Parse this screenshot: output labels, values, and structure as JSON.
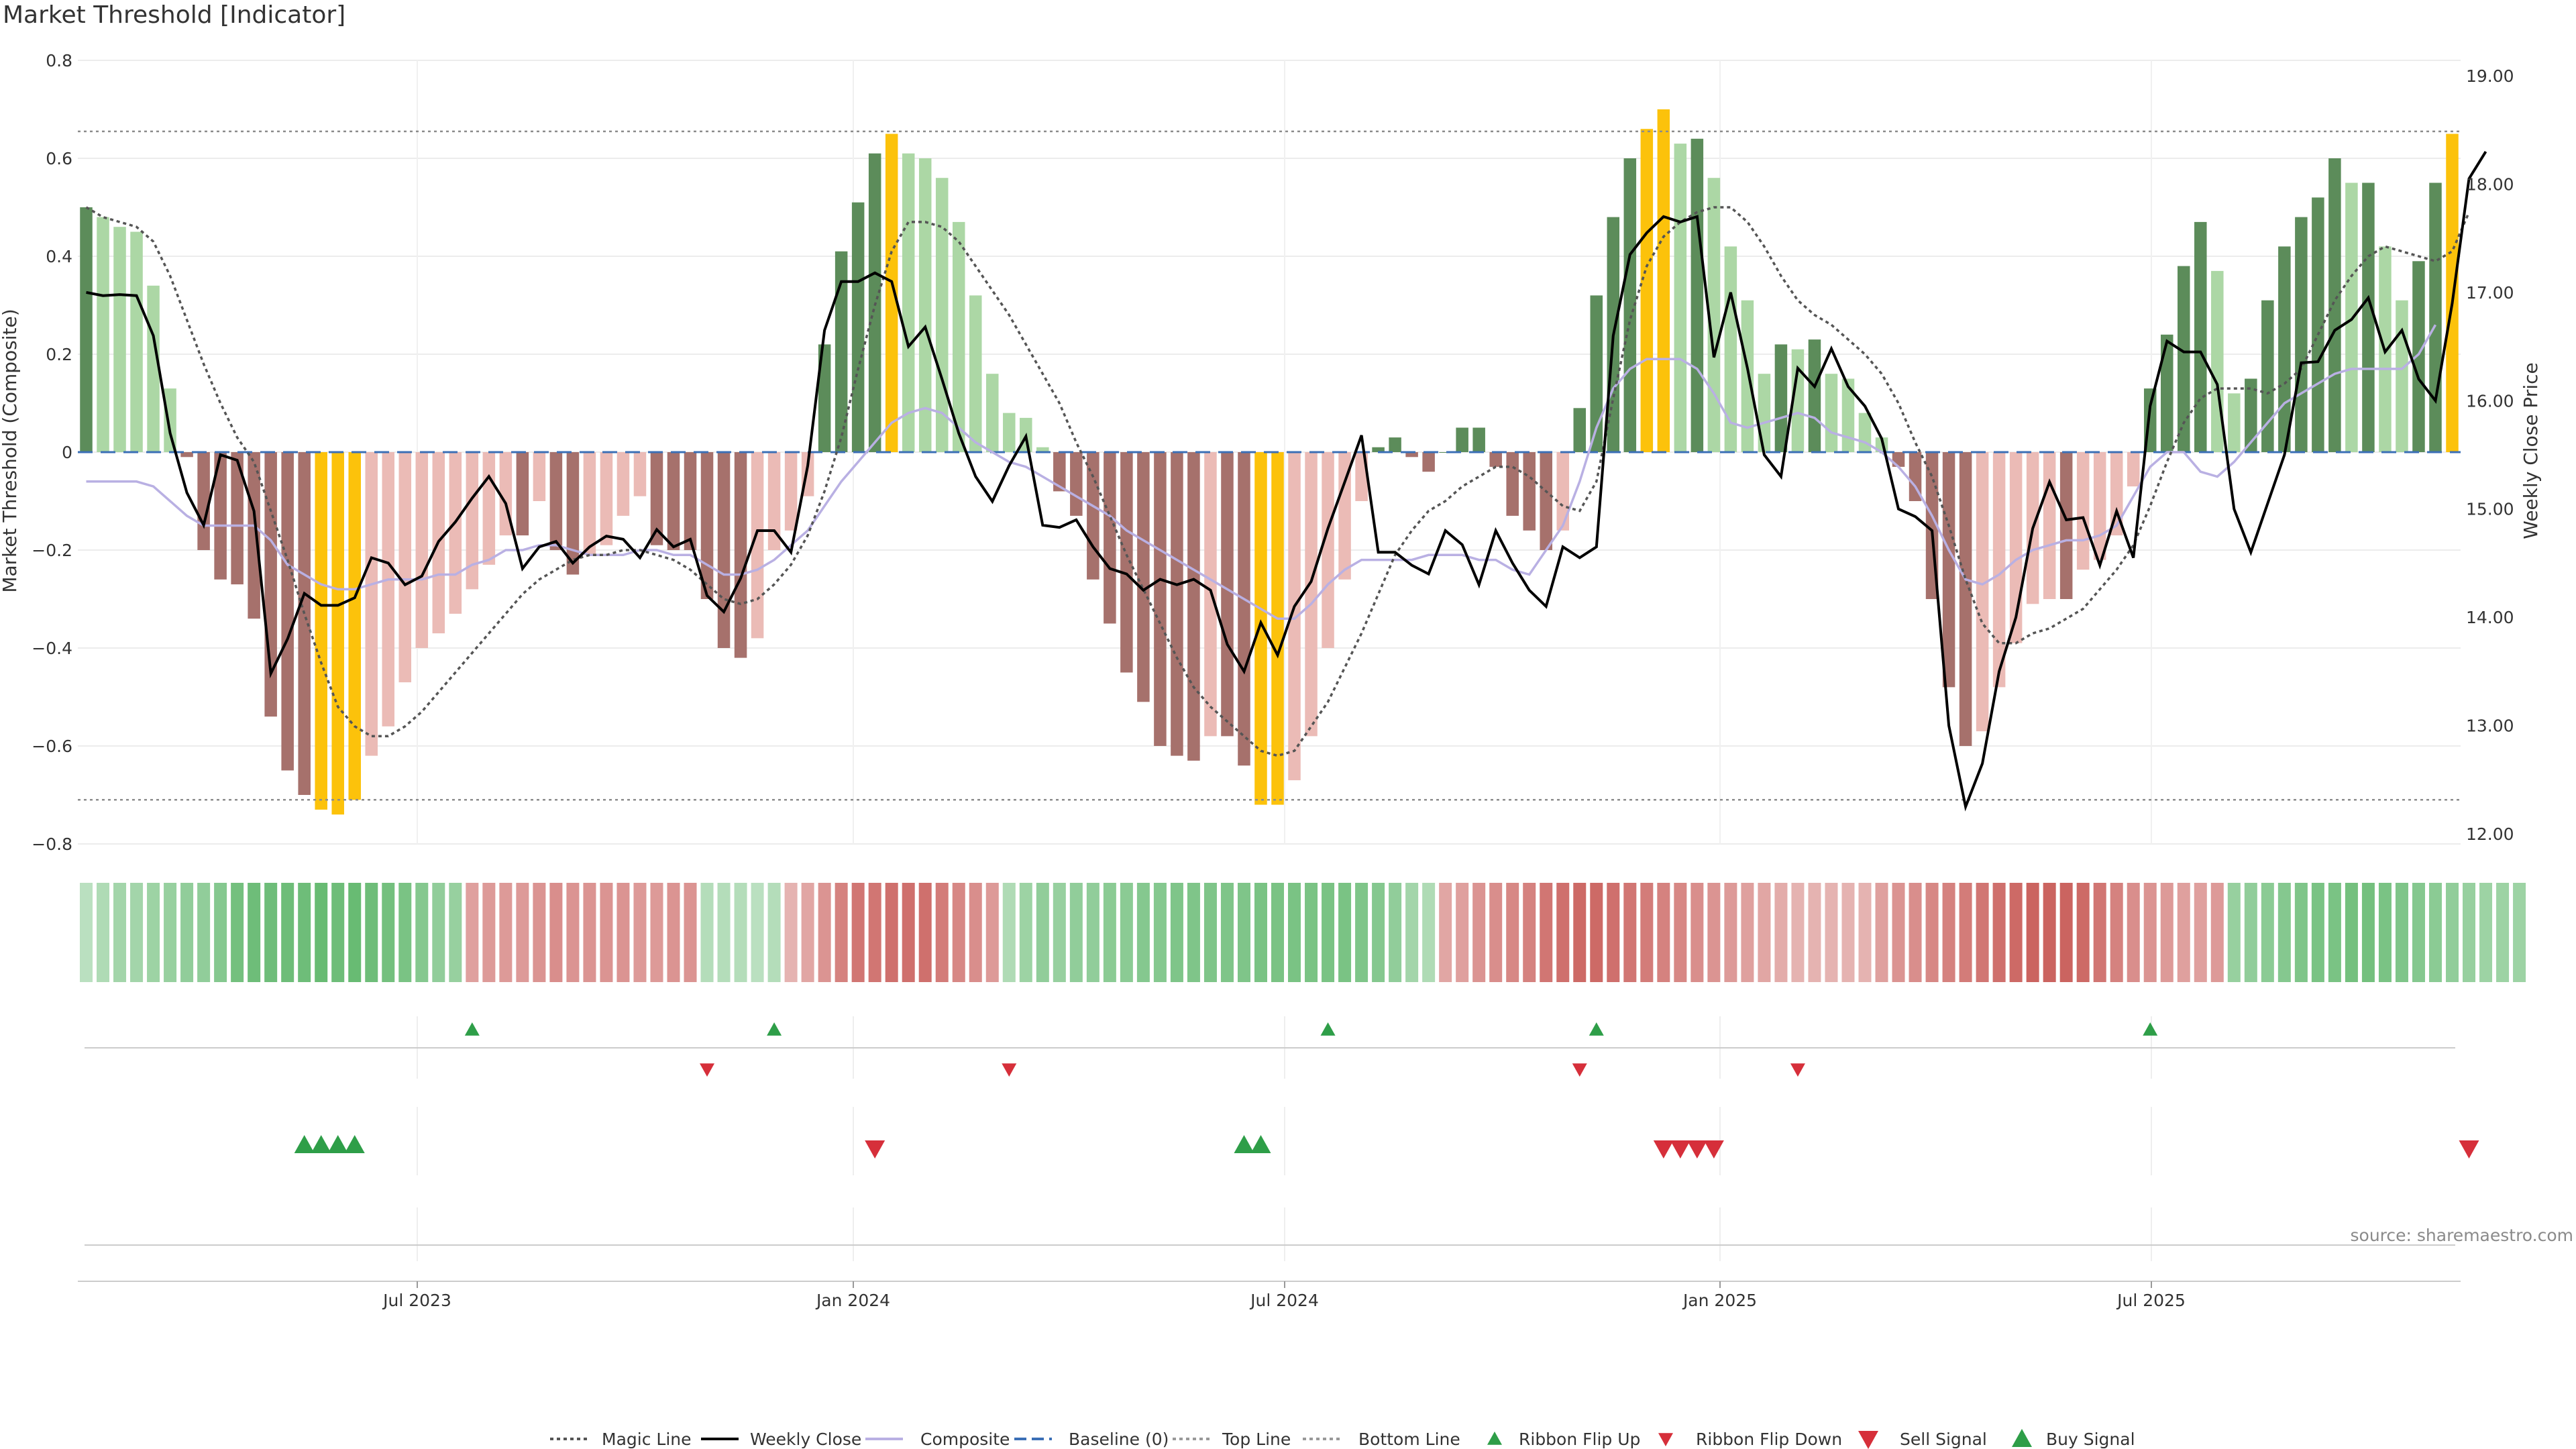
{
  "chart_data": {
    "title": "Market Threshold [Indicator]",
    "type": "bar",
    "ylabel_left": "Market Threshold (Composite)",
    "ylabel_right": "Weekly Close Price",
    "ylim_left": [
      -0.8,
      0.8
    ],
    "ylim_right": [
      12.0,
      19.0
    ],
    "yticks_left": [
      "0.8",
      "0.6",
      "0.4",
      "0.2",
      "0",
      "−0.2",
      "−0.4",
      "−0.6",
      "−0.8"
    ],
    "yticks_right": [
      "19.00",
      "18.00",
      "17.00",
      "16.00",
      "15.00",
      "14.00",
      "13.00",
      "12.00"
    ],
    "xticks": [
      "Jul 2023",
      "Jan 2024",
      "Jul 2024",
      "Jan 2025",
      "Jul 2025"
    ],
    "grid": true,
    "source": "source: sharemaestro.com",
    "top_line": 0.655,
    "bottom_line": -0.71,
    "legend": [
      {
        "label": "Magic Line",
        "style": "dotted-line",
        "color": "#555555"
      },
      {
        "label": "Weekly Close",
        "style": "solid-line",
        "color": "#000000"
      },
      {
        "label": "Composite",
        "style": "solid-line",
        "color": "#b9b0e3"
      },
      {
        "label": "Baseline (0)",
        "style": "dashed-line",
        "color": "#3b6fb6"
      },
      {
        "label": "Top Line",
        "style": "dotted-line",
        "color": "#999999"
      },
      {
        "label": "Bottom Line",
        "style": "dotted-line",
        "color": "#999999"
      },
      {
        "label": "Ribbon Flip Up",
        "style": "triangle-up-small",
        "color": "#2e9e48"
      },
      {
        "label": "Ribbon Flip Down",
        "style": "triangle-down-small",
        "color": "#d62f3a"
      },
      {
        "label": "Sell Signal",
        "style": "triangle-down",
        "color": "#d62f3a"
      },
      {
        "label": "Buy Signal",
        "style": "triangle-up",
        "color": "#2e9e48"
      }
    ],
    "colors": {
      "pos_light": "#acd7a5",
      "pos_dark": "#5c8c5a",
      "neg_light": "#ebbbb6",
      "neg_dark": "#a6716c",
      "extreme": "#fcc20b",
      "ribbon_red": "#c95e5a",
      "ribbon_green": "#62b86e"
    },
    "composite": [
      0.5,
      0.48,
      0.46,
      0.45,
      0.34,
      0.13,
      -0.01,
      -0.2,
      -0.26,
      -0.27,
      -0.34,
      -0.54,
      -0.65,
      -0.7,
      -0.73,
      -0.74,
      -0.71,
      -0.62,
      -0.56,
      -0.47,
      -0.4,
      -0.37,
      -0.33,
      -0.28,
      -0.23,
      -0.17,
      -0.17,
      -0.1,
      -0.2,
      -0.25,
      -0.21,
      -0.19,
      -0.13,
      -0.09,
      -0.19,
      -0.2,
      -0.2,
      -0.3,
      -0.4,
      -0.42,
      -0.38,
      -0.2,
      -0.16,
      -0.09,
      0.22,
      0.41,
      0.51,
      0.61,
      0.65,
      0.61,
      0.6,
      0.56,
      0.47,
      0.32,
      0.16,
      0.08,
      0.07,
      0.01,
      -0.08,
      -0.13,
      -0.26,
      -0.35,
      -0.45,
      -0.51,
      -0.6,
      -0.62,
      -0.63,
      -0.58,
      -0.58,
      -0.64,
      -0.72,
      -0.72,
      -0.67,
      -0.58,
      -0.4,
      -0.26,
      -0.1,
      0.01,
      0.03,
      -0.01,
      -0.04,
      0.0,
      0.05,
      0.05,
      -0.03,
      -0.13,
      -0.16,
      -0.2,
      -0.16,
      0.09,
      0.32,
      0.48,
      0.6,
      0.66,
      0.7,
      0.63,
      0.64,
      0.56,
      0.42,
      0.31,
      0.16,
      0.22,
      0.21,
      0.23,
      0.16,
      0.15,
      0.08,
      0.03,
      -0.03,
      -0.1,
      -0.3,
      -0.48,
      -0.6,
      -0.57,
      -0.48,
      -0.39,
      -0.31,
      -0.3,
      -0.3,
      -0.24,
      -0.22,
      -0.17,
      -0.07,
      0.13,
      0.24,
      0.38,
      0.47,
      0.37,
      0.12,
      0.15,
      0.31,
      0.42,
      0.48,
      0.52,
      0.6,
      0.55,
      0.55,
      0.42,
      0.31,
      0.39,
      0.55,
      0.65
    ],
    "composite_avg_line": [
      -0.06,
      -0.06,
      -0.06,
      -0.06,
      -0.07,
      -0.1,
      -0.13,
      -0.15,
      -0.15,
      -0.15,
      -0.15,
      -0.18,
      -0.23,
      -0.25,
      -0.27,
      -0.28,
      -0.28,
      -0.27,
      -0.26,
      -0.26,
      -0.26,
      -0.25,
      -0.25,
      -0.23,
      -0.22,
      -0.2,
      -0.2,
      -0.19,
      -0.19,
      -0.2,
      -0.21,
      -0.21,
      -0.21,
      -0.2,
      -0.2,
      -0.21,
      -0.21,
      -0.23,
      -0.25,
      -0.25,
      -0.24,
      -0.22,
      -0.19,
      -0.16,
      -0.11,
      -0.06,
      -0.02,
      0.02,
      0.06,
      0.08,
      0.09,
      0.08,
      0.05,
      0.02,
      0.0,
      -0.02,
      -0.03,
      -0.05,
      -0.07,
      -0.09,
      -0.11,
      -0.13,
      -0.16,
      -0.18,
      -0.2,
      -0.22,
      -0.24,
      -0.26,
      -0.28,
      -0.3,
      -0.32,
      -0.34,
      -0.34,
      -0.31,
      -0.27,
      -0.24,
      -0.22,
      -0.22,
      -0.22,
      -0.22,
      -0.21,
      -0.21,
      -0.21,
      -0.22,
      -0.22,
      -0.24,
      -0.25,
      -0.2,
      -0.15,
      -0.06,
      0.05,
      0.13,
      0.17,
      0.19,
      0.19,
      0.19,
      0.17,
      0.12,
      0.06,
      0.05,
      0.06,
      0.07,
      0.08,
      0.07,
      0.04,
      0.03,
      0.02,
      0.0,
      -0.03,
      -0.07,
      -0.13,
      -0.2,
      -0.26,
      -0.27,
      -0.25,
      -0.22,
      -0.2,
      -0.19,
      -0.18,
      -0.18,
      -0.17,
      -0.15,
      -0.09,
      -0.03,
      0.0,
      0.0,
      -0.04,
      -0.05,
      -0.02,
      0.02,
      0.06,
      0.1,
      0.12,
      0.14,
      0.16,
      0.17,
      0.17,
      0.17,
      0.17,
      0.2,
      0.26
    ],
    "magic_line": [
      0.5,
      0.48,
      0.47,
      0.46,
      0.43,
      0.36,
      0.27,
      0.18,
      0.1,
      0.03,
      -0.02,
      -0.12,
      -0.22,
      -0.33,
      -0.43,
      -0.52,
      -0.56,
      -0.58,
      -0.58,
      -0.56,
      -0.53,
      -0.49,
      -0.45,
      -0.41,
      -0.37,
      -0.33,
      -0.29,
      -0.26,
      -0.24,
      -0.22,
      -0.21,
      -0.21,
      -0.2,
      -0.2,
      -0.21,
      -0.22,
      -0.24,
      -0.27,
      -0.3,
      -0.31,
      -0.3,
      -0.27,
      -0.23,
      -0.17,
      -0.08,
      0.03,
      0.17,
      0.3,
      0.41,
      0.47,
      0.47,
      0.46,
      0.43,
      0.38,
      0.33,
      0.28,
      0.22,
      0.16,
      0.1,
      0.02,
      -0.05,
      -0.13,
      -0.21,
      -0.28,
      -0.35,
      -0.42,
      -0.48,
      -0.52,
      -0.55,
      -0.58,
      -0.61,
      -0.62,
      -0.61,
      -0.56,
      -0.51,
      -0.44,
      -0.37,
      -0.29,
      -0.21,
      -0.16,
      -0.12,
      -0.1,
      -0.07,
      -0.05,
      -0.03,
      -0.03,
      -0.05,
      -0.08,
      -0.11,
      -0.12,
      -0.06,
      0.11,
      0.27,
      0.38,
      0.44,
      0.47,
      0.49,
      0.5,
      0.5,
      0.47,
      0.42,
      0.36,
      0.31,
      0.28,
      0.26,
      0.23,
      0.2,
      0.16,
      0.1,
      0.02,
      -0.05,
      -0.15,
      -0.26,
      -0.35,
      -0.39,
      -0.39,
      -0.37,
      -0.36,
      -0.34,
      -0.32,
      -0.28,
      -0.24,
      -0.19,
      -0.11,
      -0.02,
      0.06,
      0.11,
      0.13,
      0.13,
      0.13,
      0.12,
      0.14,
      0.17,
      0.24,
      0.31,
      0.36,
      0.4,
      0.42,
      0.41,
      0.4,
      0.39,
      0.41,
      0.49
    ],
    "weekly_close": [
      17.0,
      16.97,
      16.98,
      16.97,
      16.6,
      15.7,
      15.15,
      14.85,
      15.5,
      15.45,
      14.98,
      13.48,
      13.8,
      14.22,
      14.11,
      14.11,
      14.18,
      14.55,
      14.5,
      14.3,
      14.38,
      14.7,
      14.88,
      15.1,
      15.3,
      15.05,
      14.45,
      14.65,
      14.7,
      14.5,
      14.65,
      14.75,
      14.72,
      14.55,
      14.81,
      14.65,
      14.72,
      14.2,
      14.05,
      14.36,
      14.8,
      14.8,
      14.6,
      15.4,
      16.65,
      17.1,
      17.1,
      17.18,
      17.1,
      16.5,
      16.68,
      16.2,
      15.7,
      15.3,
      15.07,
      15.4,
      15.67,
      14.85,
      14.83,
      14.9,
      14.65,
      14.45,
      14.4,
      14.25,
      14.35,
      14.3,
      14.35,
      14.25,
      13.75,
      13.5,
      13.95,
      13.65,
      14.1,
      14.33,
      14.82,
      15.25,
      15.68,
      14.6,
      14.6,
      14.48,
      14.4,
      14.8,
      14.67,
      14.3,
      14.8,
      14.5,
      14.25,
      14.1,
      14.65,
      14.55,
      14.65,
      16.6,
      17.35,
      17.55,
      17.7,
      17.65,
      17.7,
      16.4,
      17.0,
      16.3,
      15.5,
      15.3,
      16.3,
      16.13,
      16.48,
      16.13,
      15.95,
      15.65,
      15.0,
      14.93,
      14.8,
      13.0,
      12.25,
      12.65,
      13.5,
      14.0,
      14.82,
      15.25,
      14.9,
      14.92,
      14.48,
      14.98,
      14.55,
      15.95,
      16.55,
      16.45,
      16.45,
      16.15,
      15.0,
      14.6,
      15.05,
      15.5,
      16.35,
      16.36,
      16.65,
      16.75,
      16.95,
      16.45,
      16.65,
      16.2,
      16.0,
      16.9,
      18.05,
      18.3
    ]
  },
  "ribbon": {
    "shades": [
      0.25,
      0.35,
      0.45,
      0.45,
      0.5,
      0.55,
      0.6,
      0.6,
      0.7,
      0.85,
      0.9,
      0.9,
      0.9,
      0.9,
      0.95,
      0.9,
      0.95,
      0.9,
      0.85,
      0.8,
      0.7,
      0.6,
      0.55,
      -0.45,
      -0.5,
      -0.5,
      -0.5,
      -0.55,
      -0.6,
      -0.55,
      -0.55,
      -0.55,
      -0.55,
      -0.5,
      -0.5,
      -0.55,
      -0.55,
      0.3,
      0.3,
      0.3,
      0.25,
      0.3,
      -0.3,
      -0.4,
      -0.55,
      -0.7,
      -0.8,
      -0.8,
      -0.85,
      -0.85,
      -0.85,
      -0.75,
      -0.65,
      -0.6,
      -0.5,
      0.35,
      0.5,
      0.6,
      0.55,
      0.6,
      0.6,
      0.65,
      0.65,
      0.7,
      0.7,
      0.75,
      0.75,
      0.75,
      0.75,
      0.75,
      0.8,
      0.8,
      0.8,
      0.8,
      0.8,
      0.8,
      0.75,
      0.7,
      0.6,
      0.45,
      0.35,
      -0.4,
      -0.45,
      -0.55,
      -0.6,
      -0.65,
      -0.7,
      -0.8,
      -0.85,
      -0.9,
      -0.9,
      -0.85,
      -0.8,
      -0.75,
      -0.7,
      -0.65,
      -0.6,
      -0.55,
      -0.5,
      -0.45,
      -0.4,
      -0.35,
      -0.3,
      -0.3,
      -0.3,
      -0.3,
      -0.3,
      -0.45,
      -0.55,
      -0.6,
      -0.65,
      -0.7,
      -0.75,
      -0.8,
      -0.85,
      -0.9,
      -0.95,
      -0.95,
      -0.95,
      -0.9,
      -0.8,
      -0.7,
      -0.6,
      -0.55,
      -0.5,
      -0.45,
      -0.45,
      -0.5,
      0.55,
      0.6,
      0.65,
      0.7,
      0.75,
      0.8,
      0.8,
      0.85,
      0.85,
      0.8,
      0.75,
      0.7,
      0.65,
      0.6,
      0.55,
      0.5,
      0.5,
      0.5
    ]
  },
  "signals": {
    "ribbon_flip_up": [
      23,
      41,
      74,
      90,
      123
    ],
    "ribbon_flip_down": [
      37,
      55,
      89,
      102
    ],
    "buy": [
      13,
      14,
      15,
      16,
      69,
      70
    ],
    "sell": [
      47,
      94,
      95,
      96,
      97,
      142
    ]
  }
}
